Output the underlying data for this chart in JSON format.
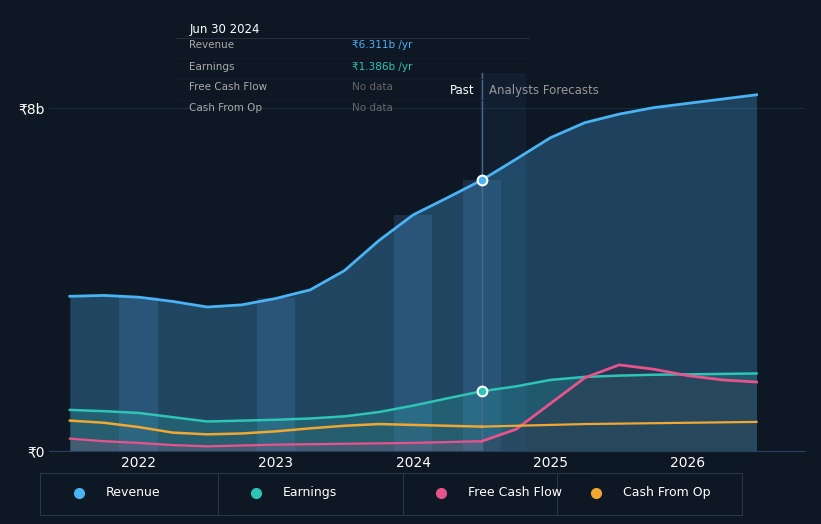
{
  "bg_color": "#0e1724",
  "plot_bg_color": "#0e1724",
  "grid_color": "#1a2a3f",
  "text_color": "#ffffff",
  "subtext_color": "#999999",
  "x_past": [
    2021.5,
    2021.75,
    2022.0,
    2022.25,
    2022.5,
    2022.75,
    2023.0,
    2023.25,
    2023.5,
    2023.75,
    2024.0,
    2024.25,
    2024.5
  ],
  "x_future": [
    2024.5,
    2024.75,
    2025.0,
    2025.25,
    2025.5,
    2025.75,
    2026.0,
    2026.25,
    2026.5
  ],
  "revenue_past": [
    3.6,
    3.62,
    3.58,
    3.48,
    3.35,
    3.4,
    3.55,
    3.75,
    4.2,
    4.9,
    5.5,
    5.9,
    6.311
  ],
  "revenue_future": [
    6.311,
    6.8,
    7.3,
    7.65,
    7.85,
    8.0,
    8.1,
    8.2,
    8.3
  ],
  "earnings_past": [
    0.95,
    0.92,
    0.88,
    0.78,
    0.68,
    0.7,
    0.72,
    0.75,
    0.8,
    0.9,
    1.05,
    1.22,
    1.386
  ],
  "earnings_future": [
    1.386,
    1.5,
    1.65,
    1.72,
    1.75,
    1.77,
    1.78,
    1.79,
    1.8
  ],
  "fcf_past": [
    0.28,
    0.22,
    0.18,
    0.13,
    0.1,
    0.12,
    0.14,
    0.15,
    0.16,
    0.17,
    0.18,
    0.2,
    0.22
  ],
  "fcf_future": [
    0.22,
    0.5,
    1.1,
    1.7,
    2.0,
    1.9,
    1.75,
    1.65,
    1.6
  ],
  "cashop_past": [
    0.7,
    0.65,
    0.55,
    0.42,
    0.38,
    0.4,
    0.45,
    0.52,
    0.58,
    0.62,
    0.6,
    0.58,
    0.56
  ],
  "cashop_future": [
    0.56,
    0.58,
    0.6,
    0.62,
    0.63,
    0.64,
    0.65,
    0.66,
    0.67
  ],
  "divider_x": 2024.5,
  "revenue_color": "#4ab3f4",
  "earnings_color": "#2ec4b6",
  "fcf_color": "#e8538c",
  "cashop_color": "#f0a832",
  "ylim": [
    0,
    8.8
  ],
  "ytick_positions": [
    0,
    8
  ],
  "ytick_labels": [
    "₹0",
    "₹8b"
  ],
  "xticks": [
    2022.0,
    2023.0,
    2024.0,
    2025.0,
    2026.0
  ],
  "xtick_labels": [
    "2022",
    "2023",
    "2024",
    "2025",
    "2026"
  ],
  "xlim": [
    2021.35,
    2026.85
  ],
  "tooltip_date": "Jun 30 2024",
  "tooltip_rows": [
    {
      "label": "Revenue",
      "value": "₹6.311b /yr",
      "value_color": "#4ab3f4"
    },
    {
      "label": "Earnings",
      "value": "₹1.386b /yr",
      "value_color": "#2ec4b6"
    },
    {
      "label": "Free Cash Flow",
      "value": "No data",
      "value_color": "#666666"
    },
    {
      "label": "Cash From Op",
      "value": "No data",
      "value_color": "#666666"
    }
  ],
  "past_label": "Past",
  "forecast_label": "Analysts Forecasts",
  "legend_items": [
    {
      "label": "Revenue",
      "color": "#4ab3f4"
    },
    {
      "label": "Earnings",
      "color": "#2ec4b6"
    },
    {
      "label": "Free Cash Flow",
      "color": "#e8538c"
    },
    {
      "label": "Cash From Op",
      "color": "#f0a832"
    }
  ],
  "bar_years": [
    2022.0,
    2023.0,
    2024.0,
    2024.5
  ],
  "bar_rev_vals": [
    3.58,
    3.55,
    5.5,
    6.311
  ],
  "bar_earn_vals": [
    0.88,
    0.72,
    1.05,
    1.386
  ]
}
